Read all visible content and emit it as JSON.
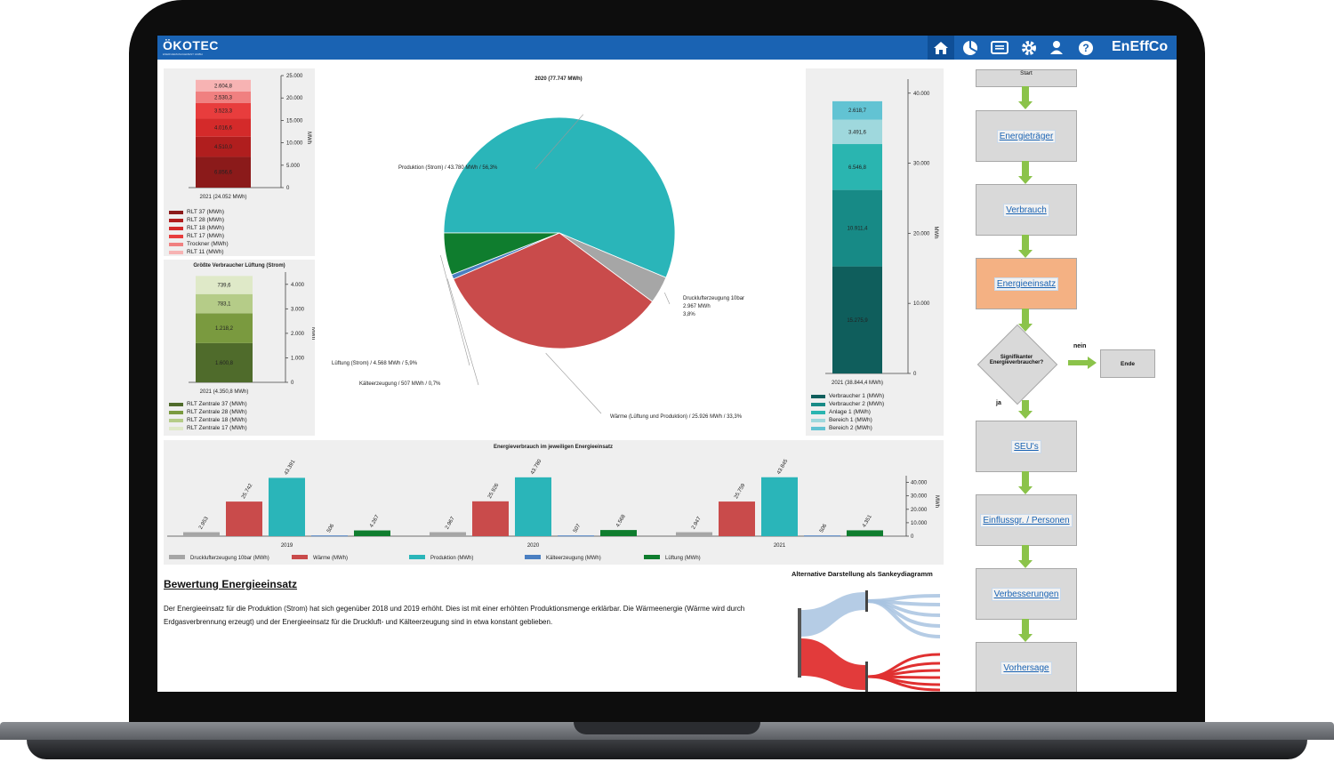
{
  "header": {
    "logo_text": "ÖKOTEC",
    "logo_subtitle": "ENERGIEMANAGEMENT GMBH",
    "brand": "EnEffCo",
    "icons": [
      "home-icon",
      "pie-chart-icon",
      "report-icon",
      "gear-icon",
      "user-icon",
      "help-icon"
    ]
  },
  "chart_data": [
    {
      "id": "rlt-stacked",
      "type": "bar",
      "title": "",
      "category": "2021 (24.052 MWh)",
      "ylabel": "MWh",
      "ylim": [
        0,
        25000
      ],
      "yticks": [
        "0",
        "5.000",
        "10.000",
        "15.000",
        "20.000",
        "25.000"
      ],
      "series": [
        {
          "name": "RLT 37 (MWh)",
          "value": 6856.6,
          "label": "6.856,6",
          "color": "#8b1a1a"
        },
        {
          "name": "RLT 28 (MWh)",
          "value": 4510.0,
          "label": "4.510,0",
          "color": "#b01e1e"
        },
        {
          "name": "RLT 18 (MWh)",
          "value": 4016.6,
          "label": "4.016,6",
          "color": "#d42a2a"
        },
        {
          "name": "RLT 17 (MWh)",
          "value": 3523.3,
          "label": "3.523,3",
          "color": "#e83d3d"
        },
        {
          "name": "Trockner (MWh)",
          "value": 2530.3,
          "label": "2.530,3",
          "color": "#f08080"
        },
        {
          "name": "RLT 11 (MWh)",
          "value": 2604.8,
          "label": "2.604,8",
          "color": "#f7b3b3"
        }
      ]
    },
    {
      "id": "lueftung-stacked",
      "type": "bar",
      "title": "Größte Verbraucher Lüftung (Strom)",
      "category": "2021 (4.350,8 MWh)",
      "ylabel": "MWh",
      "ylim": [
        0,
        4500
      ],
      "yticks": [
        "0",
        "1.000",
        "2.000",
        "3.000",
        "4.000"
      ],
      "series": [
        {
          "name": "RLT Zentrale 37 (MWh)",
          "value": 1600.8,
          "label": "1.600,8",
          "color": "#4f6b2b"
        },
        {
          "name": "RLT Zentrale 28 (MWh)",
          "value": 1218.2,
          "label": "1.218,2",
          "color": "#7a9a3f"
        },
        {
          "name": "RLT Zentrale 18 (MWh)",
          "value": 783.1,
          "label": "783,1",
          "color": "#b5cc88"
        },
        {
          "name": "RLT Zentrale 17 (MWh)",
          "value": 739.6,
          "label": "739,6",
          "color": "#dfe9c8"
        }
      ]
    },
    {
      "id": "pie-2020",
      "type": "pie",
      "title": "2020 (77.747 MWh)",
      "slices": [
        {
          "name": "Produktion (Strom)",
          "label": "Produktion (Strom) / 43.780 MWh / 56,3%",
          "value": 43780,
          "color": "#2ab5b9"
        },
        {
          "name": "Drucklufterzeugung 10bar",
          "label_lines": [
            "Drucklufterzeugung 10bar",
            "2.967 MWh",
            "3,8%"
          ],
          "value": 2967,
          "color": "#a6a6a6"
        },
        {
          "name": "Wärme (Lüftung und Produktion)",
          "label": "Wärme (Lüftung und Produktion) / 25.926 MWh / 33,3%",
          "value": 25926,
          "color": "#c94b4b"
        },
        {
          "name": "Kälteerzeugung",
          "label": "Kälteerzeugung / 507 MWh / 0,7%",
          "value": 507,
          "color": "#4a7fc1"
        },
        {
          "name": "Lüftung (Strom)",
          "label": "Lüftung (Strom) / 4.568 MWh / 5,9%",
          "value": 4568,
          "color": "#0f7d2e"
        }
      ]
    },
    {
      "id": "verbraucher-stacked",
      "type": "bar",
      "title": "",
      "category": "2021 (38.844,4 MWh)",
      "ylabel": "MWh",
      "ylim": [
        0,
        42000
      ],
      "yticks": [
        "0",
        "10.000",
        "20.000",
        "30.000",
        "40.000"
      ],
      "series": [
        {
          "name": "Verbraucher 1 (MWh)",
          "value": 15275.9,
          "label": "15.275,9",
          "color": "#0f5e5c"
        },
        {
          "name": "Verbraucher 2 (MWh)",
          "value": 10911.4,
          "label": "10.911,4",
          "color": "#178a86"
        },
        {
          "name": "Anlage 1 (MWh)",
          "value": 6546.8,
          "label": "6.546,8",
          "color": "#2ab5b0"
        },
        {
          "name": "Bereich 1 (MWh)",
          "value": 3491.6,
          "label": "3.491,6",
          "color": "#9fd8dd"
        },
        {
          "name": "Bereich 2 (MWh)",
          "value": 2618.7,
          "label": "2.618,7",
          "color": "#62c3d3"
        }
      ]
    },
    {
      "id": "energieeinsatz-grouped",
      "type": "bar",
      "title": "Energieverbrauch im jeweiligen Energieeinsatz",
      "categories": [
        "2019",
        "2020",
        "2021"
      ],
      "ylabel": "MWh",
      "ylim": [
        0,
        45000
      ],
      "yticks": [
        "0",
        "10.000",
        "20.000",
        "30.000",
        "40.000"
      ],
      "series": [
        {
          "name": "Drucklufterzeugung 10bar (MWh)",
          "values": [
            2953,
            2967,
            2947
          ],
          "labels": [
            "2.953",
            "2.967",
            "2.947"
          ],
          "color": "#a6a6a6"
        },
        {
          "name": "Wärme (MWh)",
          "values": [
            25742,
            25926,
            25759
          ],
          "labels": [
            "25.742",
            "25.926",
            "25.759"
          ],
          "color": "#c94b4b"
        },
        {
          "name": "Produktion (MWh)",
          "values": [
            43391,
            43780,
            43845
          ],
          "labels": [
            "43.391",
            "43.780",
            "43.845"
          ],
          "color": "#2ab5b9"
        },
        {
          "name": "Kälteerzeugung (MWh)",
          "values": [
            506,
            507,
            506
          ],
          "labels": [
            "506",
            "507",
            "506"
          ],
          "color": "#4a7fc1"
        },
        {
          "name": "Lüftung (MWh)",
          "values": [
            4267,
            4568,
            4351
          ],
          "labels": [
            "4.267",
            "4.568",
            "4.351"
          ],
          "color": "#0f7d2e"
        }
      ]
    }
  ],
  "assessment": {
    "heading": "Bewertung Energieeinsatz",
    "text": "Der Energieeinsatz für die Produktion (Strom) hat sich gegenüber 2018 und 2019 erhöht. Dies ist mit einer erhöhten Produktionsmenge erklärbar. Die Wärmeenergie (Wärme wird durch Erdgasverbrennung erzeugt) und der Energieeinsatz für die Druckluft- und Kälteerzeugung sind in etwa konstant geblieben."
  },
  "sankey": {
    "title": "Alternative Darstellung als Sankeydiagramm",
    "colors": {
      "blue": "#a8c3e0",
      "red": "#e03030"
    }
  },
  "flowchart": {
    "start": "Start",
    "steps": [
      "Energieträger",
      "Verbrauch",
      "Energieeinsatz",
      "SEU's",
      "Einflussgr. / Personen",
      "Verbesserungen",
      "Vorhersage"
    ],
    "decision": "Signifikanter Energieverbraucher?",
    "yes": "ja",
    "no": "nein",
    "end": "Ende",
    "active_color": "#f4b183"
  }
}
